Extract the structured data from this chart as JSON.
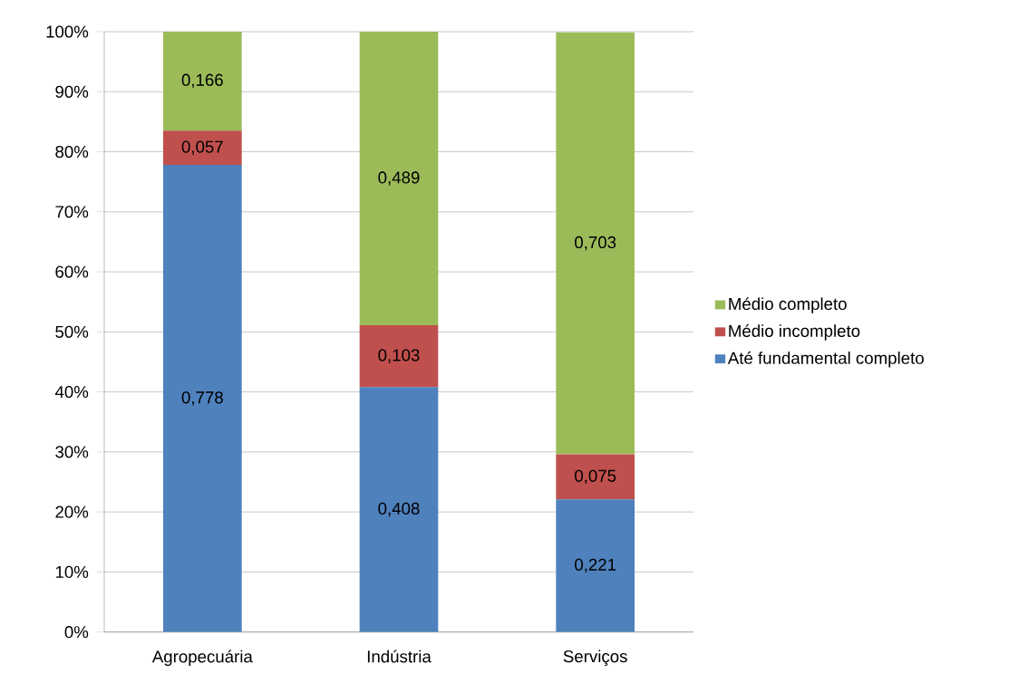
{
  "chart_data": {
    "type": "bar",
    "stacked": true,
    "categories": [
      "Agropecuária",
      "Indústria",
      "Serviços"
    ],
    "series": [
      {
        "name": "Até fundamental completo",
        "color": "#4f81bd",
        "values": [
          0.778,
          0.408,
          0.221
        ],
        "value_labels": [
          "0,778",
          "0,408",
          "0,221"
        ]
      },
      {
        "name": "Médio incompleto",
        "color": "#c0504d",
        "values": [
          0.057,
          0.103,
          0.075
        ],
        "value_labels": [
          "0,057",
          "0,103",
          "0,075"
        ]
      },
      {
        "name": "Médio completo",
        "color": "#9bbb59",
        "values": [
          0.166,
          0.489,
          0.703
        ],
        "value_labels": [
          "0,166",
          "0,489",
          "0,703"
        ]
      }
    ],
    "ylim": [
      0,
      1
    ],
    "yticks": [
      {
        "value": 0,
        "label": "0%"
      },
      {
        "value": 0.1,
        "label": "10%"
      },
      {
        "value": 0.2,
        "label": "20%"
      },
      {
        "value": 0.3,
        "label": "30%"
      },
      {
        "value": 0.4,
        "label": "40%"
      },
      {
        "value": 0.5,
        "label": "50%"
      },
      {
        "value": 0.6,
        "label": "60%"
      },
      {
        "value": 0.7,
        "label": "70%"
      },
      {
        "value": 0.8,
        "label": "80%"
      },
      {
        "value": 0.9,
        "label": "90%"
      },
      {
        "value": 1,
        "label": "100%"
      }
    ],
    "grid": "y",
    "legend": "right"
  }
}
